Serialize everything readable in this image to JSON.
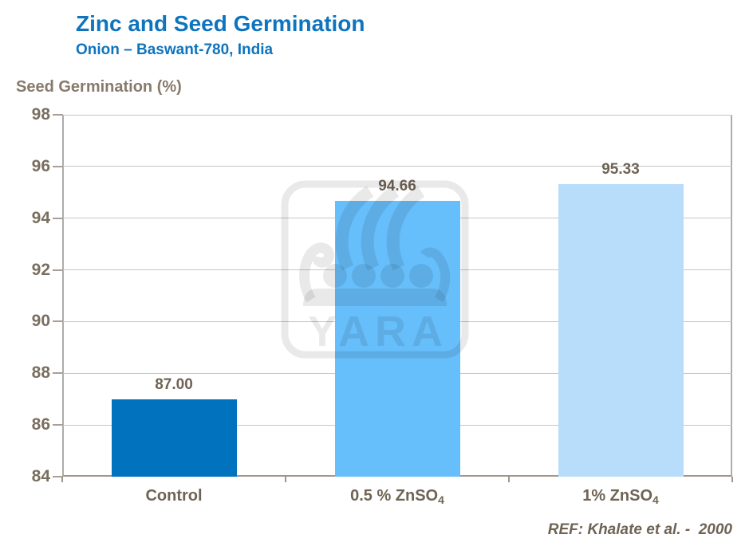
{
  "header": {
    "title": "Zinc and Seed Germination",
    "subtitle": "Onion – Baswant-780, India"
  },
  "chart_data": {
    "type": "bar",
    "title": "Zinc and Seed Germination",
    "subtitle": "Onion – Baswant-780, India",
    "ylabel": "Seed Germination (%)",
    "xlabel": "",
    "categories": [
      {
        "text": "Control",
        "sub": ""
      },
      {
        "text": "0.5 % ZnSO",
        "sub": "4"
      },
      {
        "text": "1% ZnSO",
        "sub": "4"
      }
    ],
    "values": [
      87.0,
      94.66,
      95.33
    ],
    "value_labels": [
      "87.00",
      "94.66",
      "95.33"
    ],
    "bar_colors": [
      "#0072BE",
      "#66BEFA",
      "#B7DDFB"
    ],
    "ylim": [
      84,
      98
    ],
    "yticks": [
      84,
      86,
      88,
      90,
      92,
      94,
      96,
      98
    ],
    "grid": true,
    "legend": "none"
  },
  "watermark": {
    "name": "yara-viking-ship-logo",
    "wordmark": "YARA"
  },
  "footer": {
    "reference": "REF: Khalate et al. -  2000"
  },
  "colors": {
    "title_blue": "#0E74BE",
    "axis_title_text": "#877A6A",
    "tick_text": "#7A6E60",
    "label_text": "#6F6355",
    "gridline": "#C6C6C6",
    "axis_line": "#ACACAC",
    "baseline": "#A0978B",
    "background": "#FFFFFF",
    "watermark_overlay": "rgba(0,0,0,0.088)"
  }
}
